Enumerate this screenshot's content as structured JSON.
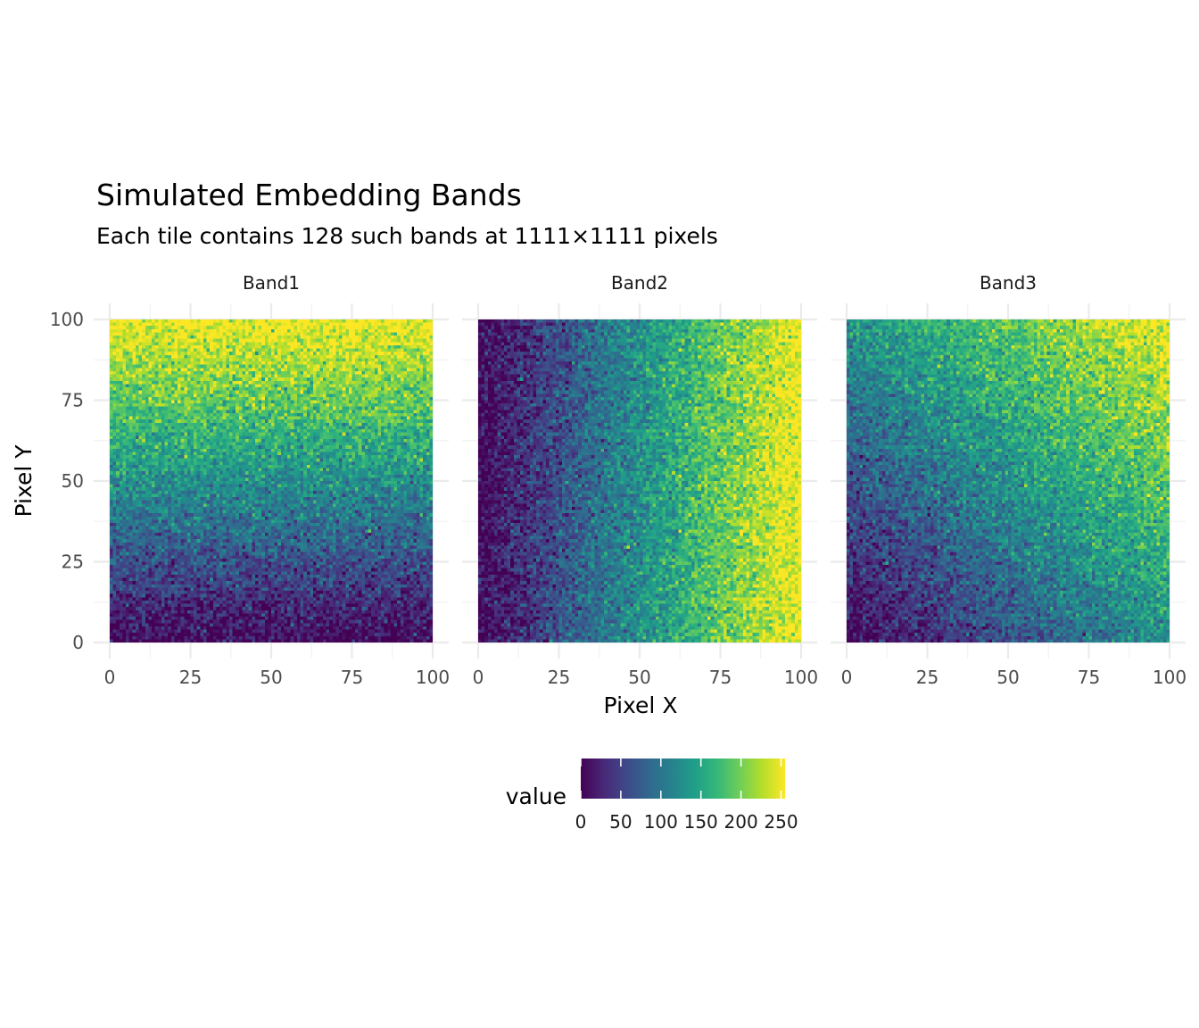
{
  "chart_data": {
    "type": "heatmap",
    "title": "Simulated Embedding Bands",
    "subtitle": "Each tile contains 128 such bands at 1111×1111 pixels",
    "xlabel": "Pixel X",
    "ylabel": "Pixel Y",
    "xlim": [
      0,
      100
    ],
    "ylim": [
      0,
      100
    ],
    "x_ticks": [
      "0",
      "25",
      "50",
      "75",
      "100"
    ],
    "y_ticks": [
      "0",
      "25",
      "50",
      "75",
      "100"
    ],
    "grid": true,
    "colormap": "viridis",
    "grid_resolution": 100,
    "noise_sd": 25,
    "panels": [
      {
        "name": "Band1",
        "trend": "value increases with Pixel Y",
        "corner_values": {
          "x0_y0": 0,
          "x100_y0": 0,
          "x0_y100": 255,
          "x100_y100": 255
        }
      },
      {
        "name": "Band2",
        "trend": "value increases with Pixel X",
        "corner_values": {
          "x0_y0": 0,
          "x100_y0": 255,
          "x0_y100": 0,
          "x100_y100": 255
        }
      },
      {
        "name": "Band3",
        "trend": "value increases with Pixel X + Pixel Y",
        "corner_values": {
          "x0_y0": 0,
          "x100_y0": 128,
          "x0_y100": 128,
          "x100_y100": 255
        }
      }
    ],
    "legend": {
      "title": "value",
      "position": "bottom",
      "range": [
        0,
        255
      ],
      "ticks": [
        "0",
        "50",
        "100",
        "150",
        "200",
        "250"
      ]
    }
  },
  "colors": {
    "viridis": [
      "#440154",
      "#482878",
      "#3e4989",
      "#31688e",
      "#26828e",
      "#1f9e89",
      "#35b779",
      "#6ece58",
      "#b5de2b",
      "#fde725"
    ],
    "grid_major": "#ebebeb",
    "grid_minor": "#f3f3f3",
    "tick_text": "#4d4d4d"
  }
}
